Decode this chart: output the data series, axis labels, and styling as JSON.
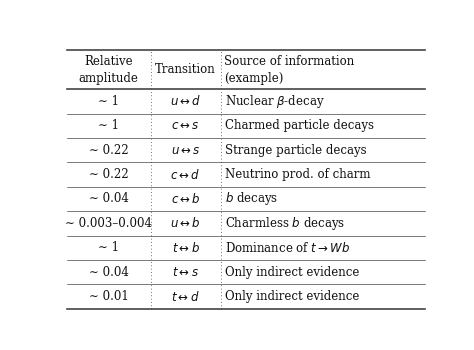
{
  "headers": [
    "Relative\namplitude",
    "Transition",
    "Source of information\n(example)"
  ],
  "col1": [
    "∼ 1",
    "∼ 1",
    "∼ 0.22",
    "∼ 0.22",
    "∼ 0.04",
    "∼ 0.003–0.004",
    "∼ 1",
    "∼ 0.04",
    "∼ 0.01"
  ],
  "col2": [
    "$u \\leftrightarrow d$",
    "$c \\leftrightarrow s$",
    "$u \\leftrightarrow s$",
    "$c \\leftrightarrow d$",
    "$c \\leftrightarrow b$",
    "$u \\leftrightarrow b$",
    "$t \\leftrightarrow b$",
    "$t \\leftrightarrow s$",
    "$t \\leftrightarrow d$"
  ],
  "col3": [
    "Nuclear $\\beta$-decay",
    "Charmed particle decays",
    "Strange particle decays",
    "Neutrino prod. of charm",
    "$b$ decays",
    "Charmless $b$ decays",
    "Dominance of $t \\rightarrow Wb$",
    "Only indirect evidence",
    "Only indirect evidence"
  ],
  "bg_color": "#ffffff",
  "text_color": "#111111",
  "line_color": "#444444",
  "figsize": [
    4.74,
    3.5
  ],
  "dpi": 100,
  "fontsize": 8.5,
  "header_fontsize": 8.5
}
